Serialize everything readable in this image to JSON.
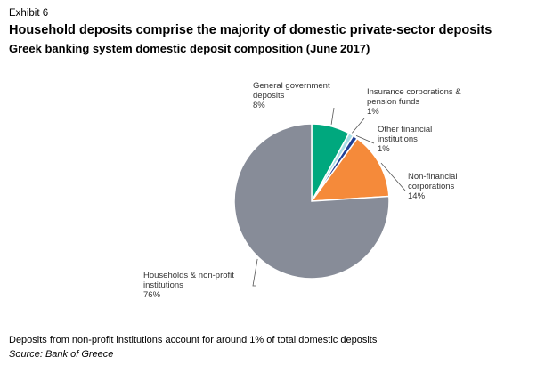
{
  "exhibit": "Exhibit 6",
  "chart_data": {
    "type": "pie",
    "title": "Household deposits comprise the majority of domestic private-sector deposits",
    "subtitle": "Greek banking system domestic deposit composition (June 2017)",
    "start": "12 o'clock, clockwise",
    "slices": [
      {
        "label": [
          "General government",
          "deposits",
          "8%"
        ],
        "value": 8,
        "color": "#00a87e"
      },
      {
        "label": [
          "Insurance corporations &",
          "pension funds",
          "1%"
        ],
        "value": 1,
        "color": "#a9dde6"
      },
      {
        "label": [
          "Other financial",
          "institutions",
          "1%"
        ],
        "value": 1,
        "color": "#1f3f96"
      },
      {
        "label": [
          "Non-financial",
          "corporations",
          "14%"
        ],
        "value": 14,
        "color": "#f58a3a"
      },
      {
        "label": [
          "Households & non-profit",
          "institutions",
          "76%"
        ],
        "value": 76,
        "color": "#878c98"
      }
    ]
  },
  "footnote": "Deposits from non-profit institutions account for around 1% of total domestic deposits",
  "source": "Source: Bank of Greece"
}
